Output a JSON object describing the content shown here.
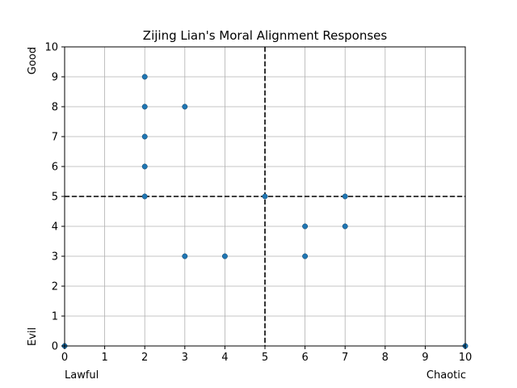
{
  "chart_data": {
    "type": "scatter",
    "title": "Zijing Lian's Moral Alignment Responses",
    "xlim": [
      0,
      10
    ],
    "ylim": [
      0,
      10
    ],
    "x_ticks": [
      0,
      1,
      2,
      3,
      4,
      5,
      6,
      7,
      8,
      9,
      10
    ],
    "y_ticks": [
      0,
      1,
      2,
      3,
      4,
      5,
      6,
      7,
      8,
      9,
      10
    ],
    "grid": true,
    "x_corner_labels": {
      "left": "Lawful",
      "right": "Chaotic"
    },
    "y_corner_labels": {
      "bottom": "Evil",
      "top": "Good"
    },
    "reference_lines": {
      "x": 5,
      "y": 5,
      "style": "dashed",
      "color": "#000000"
    },
    "marker_color": "#1f77b4",
    "points": [
      {
        "x": 2,
        "y": 9
      },
      {
        "x": 2,
        "y": 8
      },
      {
        "x": 3,
        "y": 8
      },
      {
        "x": 2,
        "y": 7
      },
      {
        "x": 2,
        "y": 6
      },
      {
        "x": 2,
        "y": 5
      },
      {
        "x": 5,
        "y": 5
      },
      {
        "x": 7,
        "y": 5
      },
      {
        "x": 6,
        "y": 4
      },
      {
        "x": 7,
        "y": 4
      },
      {
        "x": 3,
        "y": 3
      },
      {
        "x": 4,
        "y": 3
      },
      {
        "x": 6,
        "y": 3
      },
      {
        "x": 0,
        "y": 0
      },
      {
        "x": 10,
        "y": 0
      }
    ]
  }
}
